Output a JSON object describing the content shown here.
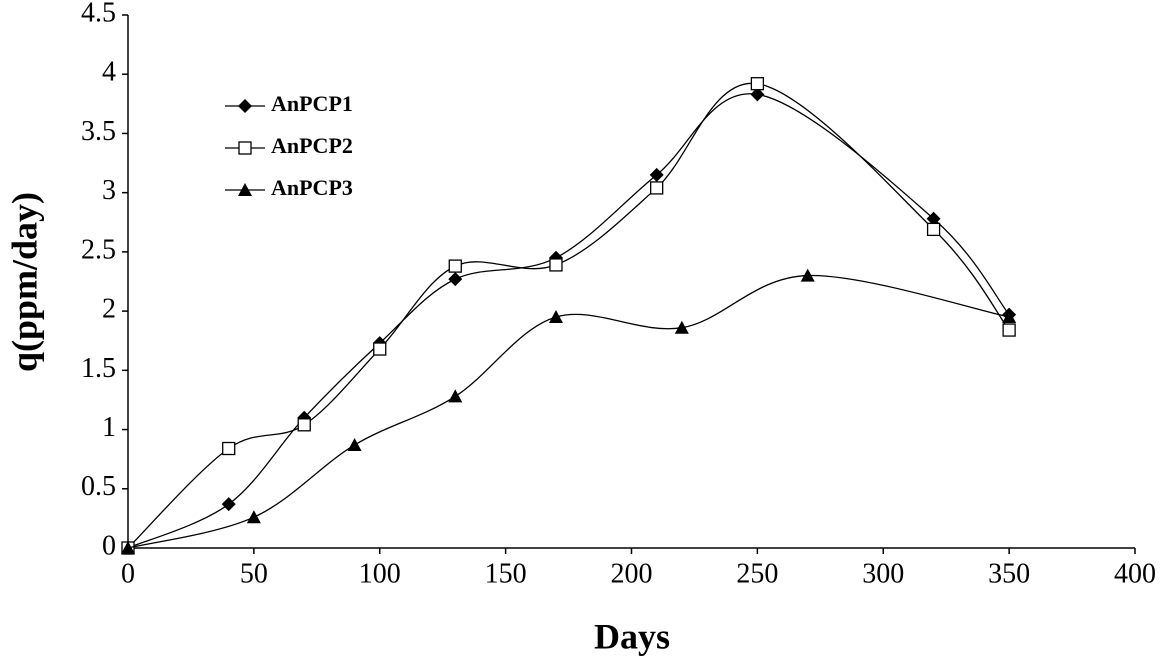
{
  "chart_data": {
    "type": "line",
    "x_label": "Days",
    "y_label": "q(ppm/day)",
    "xlim": [
      0,
      400
    ],
    "xticks": [
      0,
      50,
      100,
      150,
      200,
      250,
      300,
      350,
      400
    ],
    "ylim": [
      0,
      4.5
    ],
    "yticks": [
      0,
      0.5,
      1,
      1.5,
      2,
      2.5,
      3,
      3.5,
      4,
      4.5
    ],
    "grid": false,
    "legend": "upper-left",
    "smooth": true,
    "series": [
      {
        "name": "AnPCP1",
        "color": "#000000",
        "marker": "diamond",
        "x": [
          0,
          40,
          70,
          100,
          130,
          170,
          210,
          250,
          320,
          350
        ],
        "values": [
          0,
          0.37,
          1.1,
          1.73,
          2.27,
          2.45,
          3.15,
          3.83,
          2.78,
          1.97
        ]
      },
      {
        "name": "AnPCP2",
        "color": "#000000",
        "marker": "square-open",
        "x": [
          0,
          40,
          70,
          100,
          130,
          170,
          210,
          250,
          320,
          350
        ],
        "values": [
          0,
          0.84,
          1.04,
          1.68,
          2.38,
          2.39,
          3.04,
          3.92,
          2.69,
          1.84
        ]
      },
      {
        "name": "AnPCP3",
        "color": "#000000",
        "marker": "triangle",
        "x": [
          0,
          50,
          90,
          130,
          170,
          220,
          270,
          350
        ],
        "values": [
          0,
          0.26,
          0.87,
          1.28,
          1.95,
          1.86,
          2.3,
          1.95
        ]
      }
    ]
  }
}
